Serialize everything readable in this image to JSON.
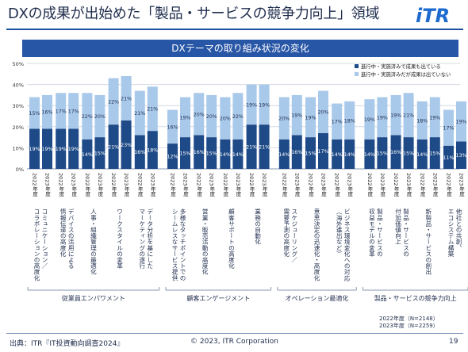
{
  "header": {
    "title": "DXの成果が出始めた「製品・サービスの競争力向上」領域",
    "logo_text": "iTR"
  },
  "banner": {
    "text": "DXテーマの取り組み状況の変化"
  },
  "footer": {
    "source": "出典：ITR『IT投資動向調査2024』",
    "copyright": "© 2023, ITR Corporation",
    "page": "19"
  },
  "notes": {
    "n2022": "2022年度（N=2148）",
    "n2023": "2023年度（N=2259）"
  },
  "colors": {
    "results": "#1e4a87",
    "no_results": "#a9c9ea",
    "banner": "#2856a6",
    "accent": "#1e4fa0"
  },
  "chart_data": {
    "type": "bar",
    "stacked": true,
    "ylim": [
      0,
      50
    ],
    "yticks": [
      "0%",
      "10%",
      "20%",
      "30%",
      "40%",
      "50%"
    ],
    "grid": true,
    "legend_position": "top-right",
    "legend": [
      "進行中・実施済みで成果も出ている",
      "進行中・実施済みだが成果は出ていない"
    ],
    "year_labels": [
      "2022年度",
      "2023年度"
    ],
    "themes": [
      {
        "name": "コミュニケーション／コラボレーションの高度化",
        "lines": [
          "コミュニケーション／",
          "コラボレーションの高度化"
        ],
        "results": [
          19,
          19
        ],
        "no_results": [
          15,
          16
        ]
      },
      {
        "name": "デバイスの活用による情報伝達の高度化",
        "lines": [
          "デバイスの活用による",
          "情報伝達の高度化"
        ],
        "results": [
          19,
          19
        ],
        "no_results": [
          17,
          17
        ]
      },
      {
        "name": "人事・組織管理の最適化",
        "lines": [
          "人事・組織管理の最適化"
        ],
        "results": [
          14,
          15
        ],
        "no_results": [
          22,
          20
        ]
      },
      {
        "name": "ワークスタイルの変革",
        "lines": [
          "ワークスタイルの変革"
        ],
        "results": [
          21,
          23
        ],
        "no_results": [
          22,
          21
        ]
      },
      {
        "name": "データ分析を基にしたマーケティングの遂行",
        "lines": [
          "データ分析を基にした",
          "マーケティングの遂行"
        ],
        "results": [
          16,
          18
        ],
        "no_results": [
          21,
          21
        ]
      },
      {
        "name": "多様なタッチポイントでのシームレスなサービス提供",
        "lines": [
          "多様なタッチポイントでの",
          "シームレスなサービス提供"
        ],
        "results": [
          12,
          15
        ],
        "no_results": [
          16,
          19
        ]
      },
      {
        "name": "営業・販売活動の高度化",
        "lines": [
          "営業・販売活動の高度化"
        ],
        "results": [
          16,
          15
        ],
        "no_results": [
          20,
          20
        ]
      },
      {
        "name": "顧客サポートの高度化",
        "lines": [
          "顧客サポートの高度化"
        ],
        "results": [
          14,
          14
        ],
        "no_results": [
          20,
          22
        ]
      },
      {
        "name": "業務の自動化",
        "lines": [
          "業務の自動化"
        ],
        "results": [
          21,
          21
        ],
        "no_results": [
          19,
          19
        ]
      },
      {
        "name": "スケジューリング／需要予測の高度化",
        "lines": [
          "スケジューリング／",
          "需要予測の高度化"
        ],
        "results": [
          14,
          16
        ],
        "no_results": [
          20,
          19
        ]
      },
      {
        "name": "意思決定の迅速化・高度化",
        "lines": [
          "意思決定の迅速化・高度化"
        ],
        "results": [
          15,
          17
        ],
        "no_results": [
          19,
          20
        ]
      },
      {
        "name": "ビジネス環境変化への対応（海外進出など）",
        "lines": [
          "ビジネス環境変化への対応",
          "（海外進出など）"
        ],
        "results": [
          14,
          14
        ],
        "no_results": [
          17,
          18
        ]
      },
      {
        "name": "製品・サービスの収益モデルの変革",
        "lines": [
          "製品・サービスの",
          "収益モデルの変革"
        ],
        "results": [
          14,
          15
        ],
        "no_results": [
          19,
          19
        ]
      },
      {
        "name": "製品・サービスの付加価値向上",
        "lines": [
          "製品・サービスの",
          "付加価値向上"
        ],
        "results": [
          16,
          15
        ],
        "no_results": [
          19,
          21
        ]
      },
      {
        "name": "新製品・サービスの創出",
        "lines": [
          "新製品・サービスの創出"
        ],
        "results": [
          14,
          15
        ],
        "no_results": [
          18,
          19
        ]
      },
      {
        "name": "他社との共創、エコシステム構築",
        "lines": [
          "他社との共創、",
          "エコシステム構築"
        ],
        "results": [
          11,
          13
        ],
        "no_results": [
          17,
          19
        ]
      }
    ],
    "groups": [
      {
        "name": "従業員エンパワメント",
        "themes": [
          0,
          1,
          2,
          3,
          4
        ]
      },
      {
        "name": "顧客エンゲージメント",
        "themes": [
          5,
          6,
          7,
          8
        ]
      },
      {
        "name": "オペレーション最適化",
        "themes": [
          9,
          10,
          11
        ]
      },
      {
        "name": "製品・サービスの競争力向上",
        "themes": [
          12,
          13,
          14,
          15
        ]
      }
    ]
  }
}
